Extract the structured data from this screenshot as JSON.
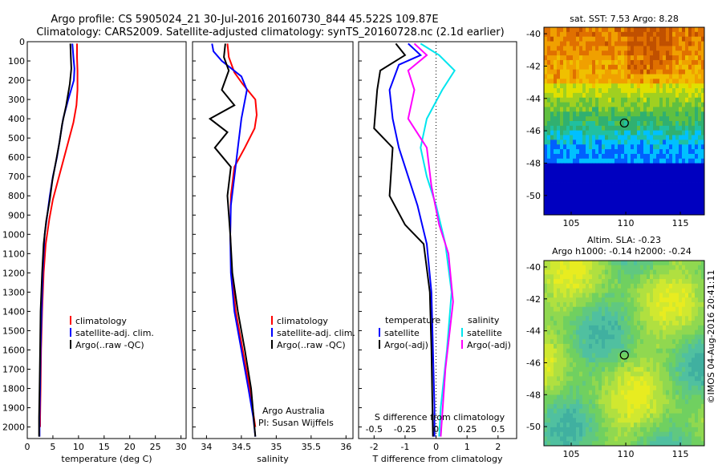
{
  "header": {
    "line1": "Argo profile: CS 5905024_21 30-Jul-2016 20160730_844 45.522S 109.87E",
    "line2": "Climatology: CARS2009. Satellite-adjusted climatology: synTS_20160728.nc (2.1d earlier)"
  },
  "colors": {
    "climatology": "#ff0000",
    "satellite": "#0000ff",
    "argo": "#000000",
    "sat_salinity": "#00e5ee",
    "argo_adj_salinity": "#ff00ff"
  },
  "chart_data": [
    {
      "type": "line",
      "id": "temperature",
      "xlabel": "temperature (deg C)",
      "ylabel": "",
      "xlim": [
        0,
        31
      ],
      "ylim": [
        2060,
        0
      ],
      "xticks": [
        0,
        5,
        10,
        15,
        20,
        25,
        30
      ],
      "yticks": [
        0,
        100,
        200,
        300,
        400,
        500,
        600,
        700,
        800,
        900,
        1000,
        1100,
        1200,
        1300,
        1400,
        1500,
        1600,
        1700,
        1800,
        1900,
        2000
      ],
      "legend": [
        "climatology",
        "satellite-adj. clim.",
        "Argo(..raw -QC)"
      ],
      "series": [
        {
          "name": "climatology",
          "color": "#ff0000",
          "x": [
            9.7,
            9.7,
            9.8,
            9.8,
            9.6,
            9.0,
            8.0,
            7.0,
            6.0,
            5.0,
            4.3,
            3.6,
            3.2,
            2.9,
            2.7,
            2.6,
            2.5,
            2.5
          ],
          "y": [
            10,
            80,
            150,
            250,
            330,
            420,
            520,
            620,
            720,
            820,
            920,
            1050,
            1200,
            1400,
            1600,
            1800,
            1950,
            2000
          ]
        },
        {
          "name": "satellite-adj. clim.",
          "color": "#0000ff",
          "x": [
            8.8,
            9.0,
            9.2,
            9.1,
            8.0,
            7.0,
            6.4,
            5.8,
            5.0,
            4.4,
            3.9,
            3.4,
            3.0,
            2.8,
            2.6,
            2.5,
            2.4,
            2.4
          ],
          "y": [
            10,
            80,
            140,
            200,
            300,
            400,
            500,
            600,
            700,
            800,
            900,
            1000,
            1200,
            1400,
            1600,
            1800,
            1950,
            2050
          ]
        },
        {
          "name": "Argo(..raw -QC)",
          "color": "#000000",
          "x": [
            8.4,
            8.5,
            8.6,
            8.3,
            7.6,
            6.8,
            6.3,
            5.6,
            4.9,
            4.4,
            3.7,
            3.2,
            2.9,
            2.6,
            2.5,
            2.4,
            2.3,
            2.3
          ],
          "y": [
            10,
            80,
            140,
            220,
            330,
            430,
            520,
            620,
            720,
            820,
            930,
            1050,
            1200,
            1400,
            1600,
            1800,
            1950,
            2050
          ]
        }
      ]
    },
    {
      "type": "line",
      "id": "salinity",
      "xlabel": "salinity",
      "xlim": [
        33.8,
        36.1
      ],
      "ylim": [
        2060,
        0
      ],
      "xticks": [
        34,
        34.5,
        35,
        35.5,
        36
      ],
      "legend": [
        "climatology",
        "satellite-adj. clim.",
        "Argo(..raw -QC)"
      ],
      "annotation": [
        "Argo Australia",
        "PI: Susan Wijffels"
      ],
      "series": [
        {
          "name": "climatology",
          "color": "#ff0000",
          "x": [
            34.3,
            34.32,
            34.4,
            34.52,
            34.7,
            34.72,
            34.69,
            34.55,
            34.4,
            34.35,
            34.34,
            34.36,
            34.42,
            34.52,
            34.62,
            34.68,
            34.7
          ],
          "y": [
            10,
            80,
            160,
            220,
            300,
            380,
            450,
            550,
            650,
            800,
            1000,
            1200,
            1400,
            1600,
            1800,
            1950,
            2000
          ]
        },
        {
          "name": "satellite-adj. clim.",
          "color": "#0000ff",
          "x": [
            34.08,
            34.1,
            34.22,
            34.5,
            34.58,
            34.5,
            34.45,
            34.4,
            34.35,
            34.34,
            34.35,
            34.4,
            34.5,
            34.6,
            34.67,
            34.7
          ],
          "y": [
            10,
            50,
            100,
            180,
            250,
            400,
            550,
            700,
            850,
            1000,
            1200,
            1400,
            1600,
            1800,
            1950,
            2050
          ]
        },
        {
          "name": "Argo(..raw -QC)",
          "color": "#000000",
          "x": [
            34.27,
            34.25,
            34.32,
            34.22,
            34.4,
            34.05,
            34.3,
            34.12,
            34.35,
            34.3,
            34.34,
            34.37,
            34.45,
            34.55,
            34.64,
            34.7
          ],
          "y": [
            10,
            80,
            150,
            250,
            330,
            400,
            470,
            550,
            650,
            800,
            1000,
            1200,
            1400,
            1600,
            1800,
            2050
          ]
        }
      ]
    },
    {
      "type": "line",
      "id": "differences",
      "xlabel": "T difference from climatology",
      "top_label": "S difference from climatology",
      "xlim": [
        -2.5,
        2.6
      ],
      "ylim": [
        2060,
        0
      ],
      "xticks": [
        -2,
        -1,
        0,
        1,
        2
      ],
      "xticklabels": [
        "-2",
        "-1",
        "0",
        "1",
        "2"
      ],
      "sticklabels": [
        "-0.5",
        "-0.25",
        "0",
        "0.25",
        "0.5"
      ],
      "legend_left_title": "temperature",
      "legend_right_title": "salinity",
      "legend_left": [
        "satellite",
        "Argo(-adj)"
      ],
      "legend_right": [
        "satellite",
        "Argo(-adj)"
      ],
      "series": [
        {
          "name": "satellite (temperature)",
          "color": "#0000ff",
          "x": [
            -0.9,
            -0.5,
            -1.2,
            -1.5,
            -1.4,
            -1.2,
            -0.9,
            -0.6,
            -0.3,
            -0.15,
            -0.1,
            -0.05,
            -0.05
          ],
          "y": [
            10,
            70,
            120,
            250,
            400,
            550,
            700,
            850,
            1050,
            1300,
            1600,
            1900,
            2050
          ]
        },
        {
          "name": "Argo(-adj) (temperature)",
          "color": "#000000",
          "x": [
            -1.3,
            -1.0,
            -1.8,
            -1.9,
            -2.0,
            -1.4,
            -1.5,
            -1.0,
            -0.4,
            -0.2,
            -0.15,
            -0.1
          ],
          "y": [
            10,
            70,
            150,
            250,
            450,
            550,
            800,
            950,
            1050,
            1300,
            1600,
            2050
          ]
        },
        {
          "name": "satellite (salinity)",
          "color": "#00e5ee",
          "x": [
            -0.5,
            0.1,
            0.6,
            0.2,
            -0.3,
            -0.5,
            -0.3,
            0.0,
            0.3,
            0.5,
            0.35,
            0.15,
            0.1
          ],
          "y": [
            10,
            70,
            150,
            250,
            400,
            550,
            700,
            850,
            1050,
            1300,
            1600,
            1900,
            2050
          ]
        },
        {
          "name": "Argo(-adj) (salinity)",
          "color": "#ff00ff",
          "x": [
            -0.7,
            -0.3,
            -0.9,
            -0.7,
            -0.9,
            -0.3,
            -0.15,
            0.1,
            0.4,
            0.55,
            0.3,
            0.15
          ],
          "y": [
            10,
            70,
            150,
            250,
            400,
            550,
            750,
            950,
            1100,
            1350,
            1700,
            2050
          ]
        }
      ]
    },
    {
      "type": "heatmap",
      "id": "sst_map",
      "title": "sat. SST: 7.53 Argo: 8.28",
      "xlim": [
        102.5,
        117.2
      ],
      "ylim": [
        -51.2,
        -39.6
      ],
      "xticks": [
        105,
        110,
        115
      ],
      "yticks": [
        -40,
        -42,
        -44,
        -46,
        -48,
        -50
      ],
      "marker": {
        "lon": 109.87,
        "lat": -45.52
      }
    },
    {
      "type": "heatmap",
      "id": "sla_map",
      "title": "Altim. SLA: -0.23",
      "subtitle": "Argo h1000: -0.14 h2000: -0.24",
      "xlim": [
        102.5,
        117.2
      ],
      "ylim": [
        -51.2,
        -39.6
      ],
      "xticks": [
        105,
        110,
        115
      ],
      "yticks": [
        -40,
        -42,
        -44,
        -46,
        -48,
        -50
      ],
      "marker": {
        "lon": 109.87,
        "lat": -45.52
      }
    }
  ],
  "footer_stamp": "©IMOS 04-Aug-2016 20:41:11"
}
